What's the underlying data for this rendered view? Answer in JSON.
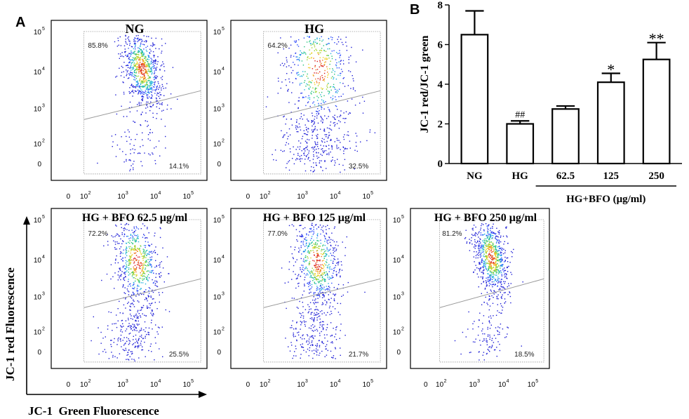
{
  "panel_labels": {
    "a": "A",
    "b": "B"
  },
  "flow": {
    "tick_labels_y": [
      "10",
      "10",
      "10",
      "10",
      "0"
    ],
    "tick_exps_y": [
      "5",
      "4",
      "3",
      "2",
      ""
    ],
    "tick_labels_x": [
      "0",
      "10",
      "10",
      "10",
      "10"
    ],
    "tick_exps_x": [
      "",
      "2",
      "3",
      "4",
      "5"
    ],
    "y_axis_title": "JC-1 red Fluorescence",
    "x_axis_title": "JC-1  Green Fluorescence",
    "plots": [
      {
        "title": "NG",
        "upper_pct": "85.8%",
        "lower_pct": "14.1%",
        "shape": "tight"
      },
      {
        "title": "HG",
        "upper_pct": "64.2%",
        "lower_pct": "32.5%",
        "shape": "spread"
      },
      {
        "title": "HG + BFO 62.5 μg/ml",
        "upper_pct": "72.2%",
        "lower_pct": "25.5%",
        "shape": "mid"
      },
      {
        "title": "HG + BFO 125 μg/ml",
        "upper_pct": "77.0%",
        "lower_pct": "21.7%",
        "shape": "mid"
      },
      {
        "title": "HG + BFO 250 μg/ml",
        "upper_pct": "81.2%",
        "lower_pct": "18.5%",
        "shape": "tight"
      }
    ]
  },
  "chart_data": {
    "type": "bar",
    "title": "",
    "ylabel": "JC-1 red/JC-1 green",
    "xlabel": "HG+BFO (μg/ml)",
    "categories": [
      "NG",
      "HG",
      "62.5",
      "125",
      "250"
    ],
    "values": [
      6.5,
      2.0,
      2.75,
      4.1,
      5.25
    ],
    "errors": [
      1.2,
      0.15,
      0.15,
      0.45,
      0.85
    ],
    "annotations": [
      "",
      "##",
      "",
      "*",
      "**"
    ],
    "ylim": [
      0,
      8
    ],
    "yticks": [
      "0",
      "2",
      "4",
      "6",
      "8"
    ],
    "bar_color": "#ffffff",
    "edge_color": "#000000"
  }
}
